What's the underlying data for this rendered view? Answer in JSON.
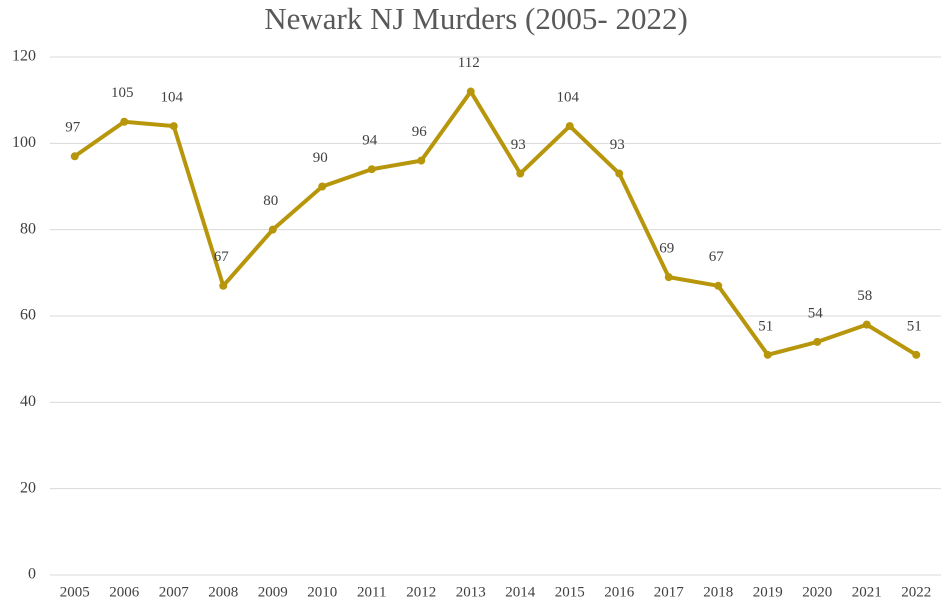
{
  "chart_data": {
    "type": "line",
    "title": "Newark NJ Murders (2005- 2022)",
    "categories": [
      "2005",
      "2006",
      "2007",
      "2008",
      "2009",
      "2010",
      "2011",
      "2012",
      "2013",
      "2014",
      "2015",
      "2016",
      "2017",
      "2018",
      "2019",
      "2020",
      "2021",
      "2022"
    ],
    "series": [
      {
        "name": "Murders",
        "color": "#b8960c",
        "values": [
          97,
          105,
          104,
          67,
          80,
          90,
          94,
          96,
          112,
          93,
          104,
          93,
          69,
          67,
          51,
          54,
          58,
          51
        ]
      }
    ],
    "ylim": [
      0,
      120
    ],
    "yticks": [
      0,
      20,
      40,
      60,
      80,
      100,
      120
    ],
    "grid": true
  }
}
